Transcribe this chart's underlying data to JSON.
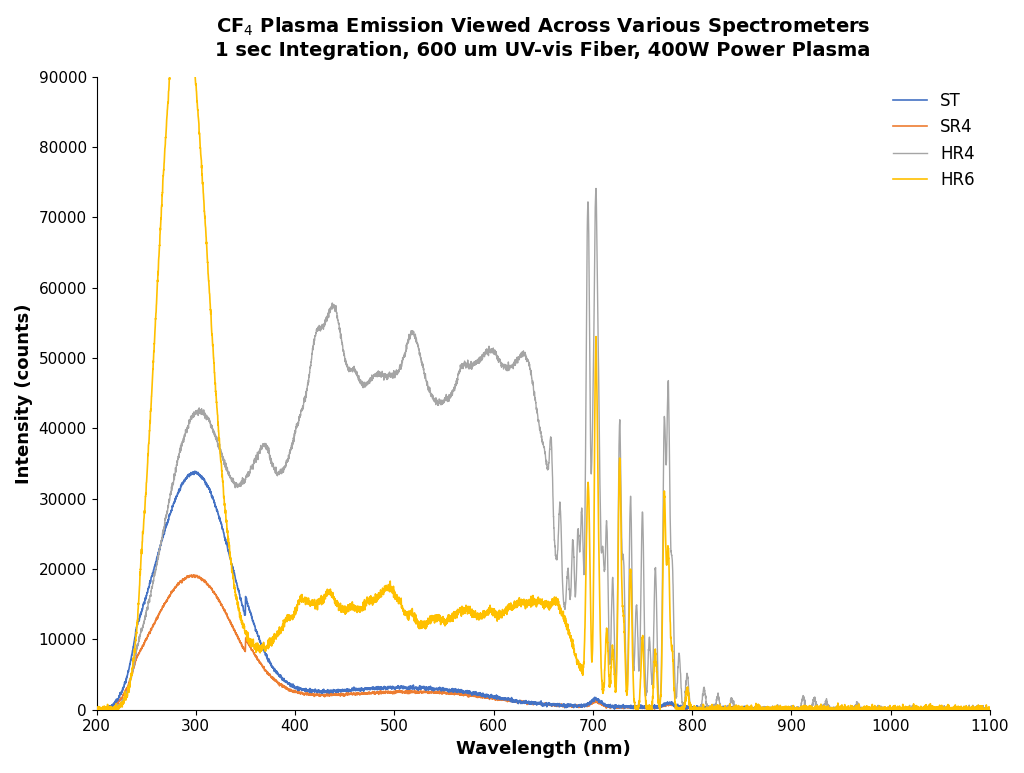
{
  "title": "CF$_4$ Plasma Emission Viewed Across Various Spectrometers\n1 sec Integration, 600 um UV-vis Fiber, 400W Power Plasma",
  "xlabel": "Wavelength (nm)",
  "ylabel": "Intensity (counts)",
  "xlim": [
    200,
    1100
  ],
  "ylim": [
    0,
    90000
  ],
  "xticks": [
    200,
    300,
    400,
    500,
    600,
    700,
    800,
    900,
    1000,
    1100
  ],
  "yticks": [
    0,
    10000,
    20000,
    30000,
    40000,
    50000,
    60000,
    70000,
    80000,
    90000
  ],
  "colors": {
    "ST": "#4472C4",
    "SR4": "#ED7D31",
    "HR4": "#A5A5A5",
    "HR6": "#FFC000"
  },
  "background_color": "#FFFFFF"
}
